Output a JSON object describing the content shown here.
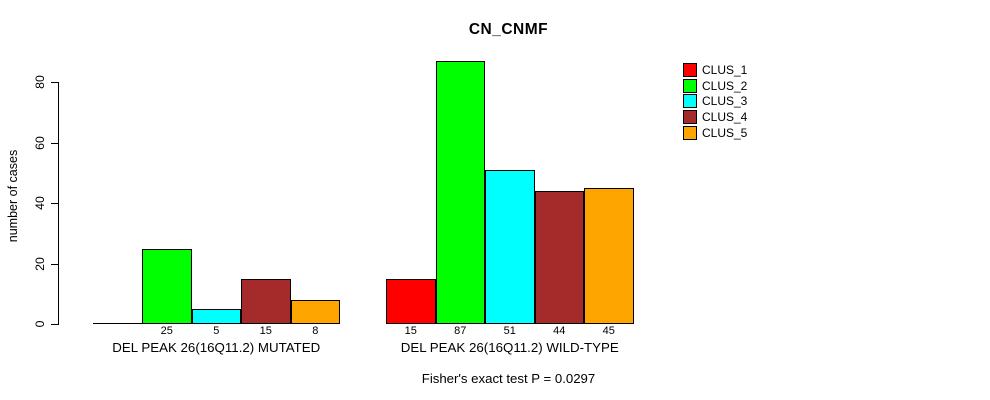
{
  "chart_data": {
    "type": "bar",
    "title": "CN_CNMF",
    "xlabel": "",
    "ylabel": "number of cases",
    "ylim": [
      0,
      87
    ],
    "yticks": [
      0,
      20,
      40,
      60,
      80
    ],
    "grid": false,
    "legend_position": "right",
    "legend": [
      {
        "label": "CLUS_1",
        "color": "#FF0000"
      },
      {
        "label": "CLUS_2",
        "color": "#00FF00"
      },
      {
        "label": "CLUS_3",
        "color": "#00FFFF"
      },
      {
        "label": "CLUS_4",
        "color": "#A52A2A"
      },
      {
        "label": "CLUS_5",
        "color": "#FFA500"
      }
    ],
    "groups": [
      {
        "label": "DEL PEAK 26(16Q11.2) MUTATED",
        "values": [
          0,
          25,
          5,
          15,
          8
        ],
        "bar_labels": [
          "",
          "25",
          "5",
          "15",
          "8"
        ]
      },
      {
        "label": "DEL PEAK 26(16Q11.2) WILD-TYPE",
        "values": [
          15,
          87,
          51,
          44,
          45
        ],
        "bar_labels": [
          "15",
          "87",
          "51",
          "44",
          "45"
        ]
      }
    ],
    "annotation": "Fisher's exact test P = 0.0297"
  }
}
